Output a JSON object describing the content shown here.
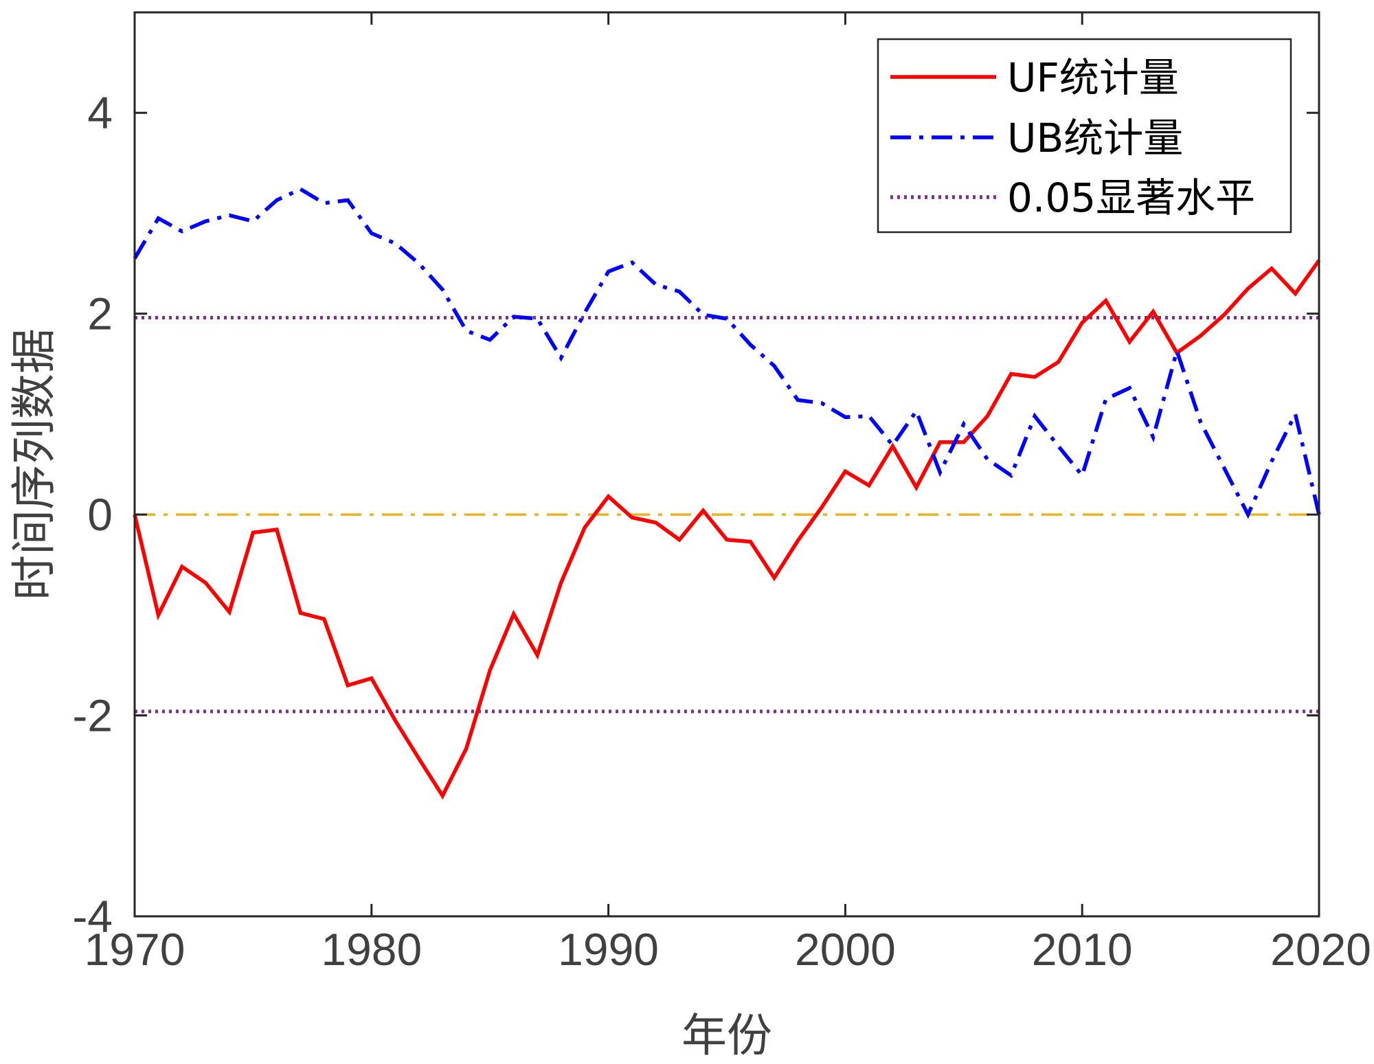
{
  "chart_data": {
    "type": "line",
    "title": "",
    "xlabel": "年份",
    "ylabel": "时间序列数据",
    "xlim": [
      1970,
      2020
    ],
    "ylim": [
      -4,
      5
    ],
    "xticks": [
      1970,
      1980,
      1990,
      2000,
      2010,
      2020
    ],
    "yticks": [
      -4,
      -2,
      0,
      2,
      4
    ],
    "xtick_labels": [
      "1970",
      "1980",
      "1990",
      "2000",
      "2010",
      "2020"
    ],
    "ytick_labels": [
      "-4",
      "-2",
      "0",
      "2",
      "4"
    ],
    "grid": false,
    "legend_position": "top-right",
    "x": [
      1970,
      1971,
      1972,
      1973,
      1974,
      1975,
      1976,
      1977,
      1978,
      1979,
      1980,
      1981,
      1982,
      1983,
      1984,
      1985,
      1986,
      1987,
      1988,
      1989,
      1990,
      1991,
      1992,
      1993,
      1994,
      1995,
      1996,
      1997,
      1998,
      1999,
      2000,
      2001,
      2002,
      2003,
      2004,
      2005,
      2006,
      2007,
      2008,
      2009,
      2010,
      2011,
      2012,
      2013,
      2014,
      2015,
      2016,
      2017,
      2018,
      2019,
      2020
    ],
    "series": [
      {
        "name": "UF统计量",
        "color": "#ff0000",
        "style": "solid",
        "values": [
          0,
          -1.0,
          -0.52,
          -0.68,
          -0.97,
          -0.18,
          -0.15,
          -0.98,
          -1.04,
          -1.7,
          -1.63,
          -2.05,
          -2.43,
          -2.8,
          -2.33,
          -1.55,
          -0.99,
          -1.4,
          -0.68,
          -0.13,
          0.18,
          -0.03,
          -0.08,
          -0.25,
          0.04,
          -0.25,
          -0.27,
          -0.63,
          -0.26,
          0.07,
          0.43,
          0.29,
          0.68,
          0.27,
          0.72,
          0.72,
          0.98,
          1.4,
          1.37,
          1.52,
          1.91,
          2.13,
          1.72,
          2.02,
          1.61,
          1.78,
          1.99,
          2.25,
          2.45,
          2.2,
          2.53
        ]
      },
      {
        "name": "UB统计量",
        "color": "#0000ff",
        "style": "dashdot",
        "values": [
          2.55,
          2.95,
          2.82,
          2.92,
          2.98,
          2.92,
          3.13,
          3.24,
          3.1,
          3.13,
          2.8,
          2.7,
          2.5,
          2.24,
          1.83,
          1.74,
          1.97,
          1.95,
          1.56,
          2.01,
          2.42,
          2.51,
          2.29,
          2.22,
          1.99,
          1.95,
          1.69,
          1.48,
          1.14,
          1.11,
          0.97,
          0.98,
          0.69,
          1.03,
          0.42,
          0.9,
          0.55,
          0.39,
          0.98,
          0.68,
          0.39,
          1.15,
          1.26,
          0.77,
          1.63,
          0.92,
          0.46,
          0.0,
          0.53,
          1.0,
          0.0
        ]
      }
    ],
    "reference_lines": [
      {
        "name": "0.05显著水平",
        "y": 1.96,
        "color": "#7e2f8e",
        "style": "dotted"
      },
      {
        "y": -1.96,
        "color": "#7e2f8e",
        "style": "dotted"
      },
      {
        "y": 0,
        "color": "#edb120",
        "style": "dashdot"
      }
    ],
    "legend": [
      {
        "label": "UF统计量",
        "color": "#ff0000",
        "style": "solid"
      },
      {
        "label": "UB统计量",
        "color": "#0000ff",
        "style": "dashdot"
      },
      {
        "label": "0.05显著水平",
        "color": "#7e2f8e",
        "style": "dotted"
      }
    ]
  }
}
